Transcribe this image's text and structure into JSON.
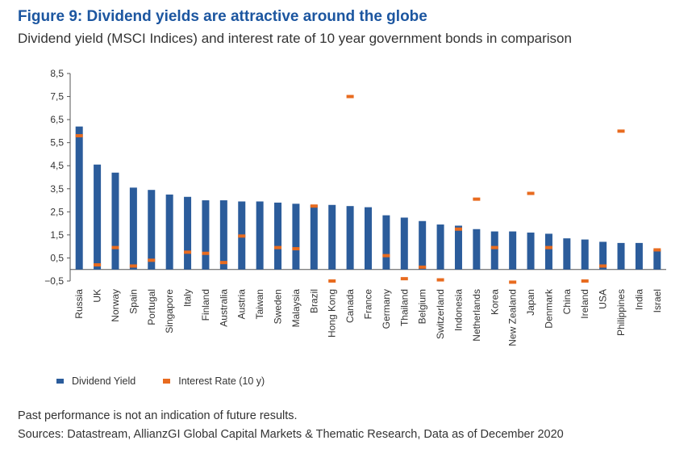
{
  "header": {
    "title": "Figure 9: Dividend yields are attractive around the globe",
    "subtitle": "Dividend yield (MSCI Indices) and interest rate of 10 year government bonds in comparison"
  },
  "legend": {
    "dividend_label": "Dividend Yield",
    "interest_label": "Interest Rate (10 y)"
  },
  "footer": {
    "note": "Past performance is not an indication of future results.",
    "sources": "Sources: Datastream, AllianzGI Global Capital Markets & Thematic Research, Data as of December 2020"
  },
  "colors": {
    "dividend": "#2b5c9b",
    "interest": "#e86b1f",
    "axis": "#555555",
    "title": "#1c56a0"
  },
  "chart_data": {
    "type": "bar",
    "title": "Figure 9: Dividend yields are attractive around the globe",
    "subtitle": "Dividend yield (MSCI Indices) and interest rate of 10 year government bonds in comparison",
    "categories": [
      "Russia",
      "UK",
      "Norway",
      "Spain",
      "Portugal",
      "Singapore",
      "Italy",
      "Finland",
      "Australia",
      "Austria",
      "Taiwan",
      "Sweden",
      "Malaysia",
      "Brazil",
      "Hong Kong",
      "Canada",
      "France",
      "Germany",
      "Thailand",
      "Belgium",
      "Switzerland",
      "Indonesia",
      "Netherlands",
      "Korea",
      "New Zealand",
      "Japan",
      "Denmark",
      "China",
      "Ireland",
      "USA",
      "Philippines",
      "India",
      "Israel"
    ],
    "series": [
      {
        "name": "Dividend Yield",
        "values": [
          6.2,
          4.55,
          4.2,
          3.55,
          3.45,
          3.25,
          3.15,
          3.0,
          3.0,
          2.95,
          2.95,
          2.9,
          2.85,
          2.8,
          2.8,
          2.75,
          2.7,
          2.35,
          2.25,
          2.1,
          1.95,
          1.9,
          1.75,
          1.65,
          1.65,
          1.6,
          1.55,
          1.35,
          1.3,
          1.2,
          1.15,
          1.15,
          0.85
        ]
      },
      {
        "name": "Interest Rate (10 y)",
        "values": [
          5.8,
          0.2,
          0.95,
          0.15,
          0.4,
          null,
          0.75,
          0.7,
          0.3,
          1.45,
          null,
          0.95,
          0.9,
          2.75,
          -0.5,
          7.5,
          null,
          0.6,
          -0.4,
          0.1,
          -0.45,
          1.75,
          3.05,
          0.95,
          -0.55,
          3.3,
          0.95,
          null,
          -0.5,
          0.15,
          6.0,
          null,
          0.85
        ]
      }
    ],
    "yticks": [
      "8,5",
      "7,5",
      "6,5",
      "5,5",
      "4,5",
      "3,5",
      "2,5",
      "1,5",
      "0,5",
      "−0,5"
    ],
    "ylim": [
      -0.5,
      8.5
    ],
    "grid": false,
    "legend_position": "bottom-left"
  }
}
